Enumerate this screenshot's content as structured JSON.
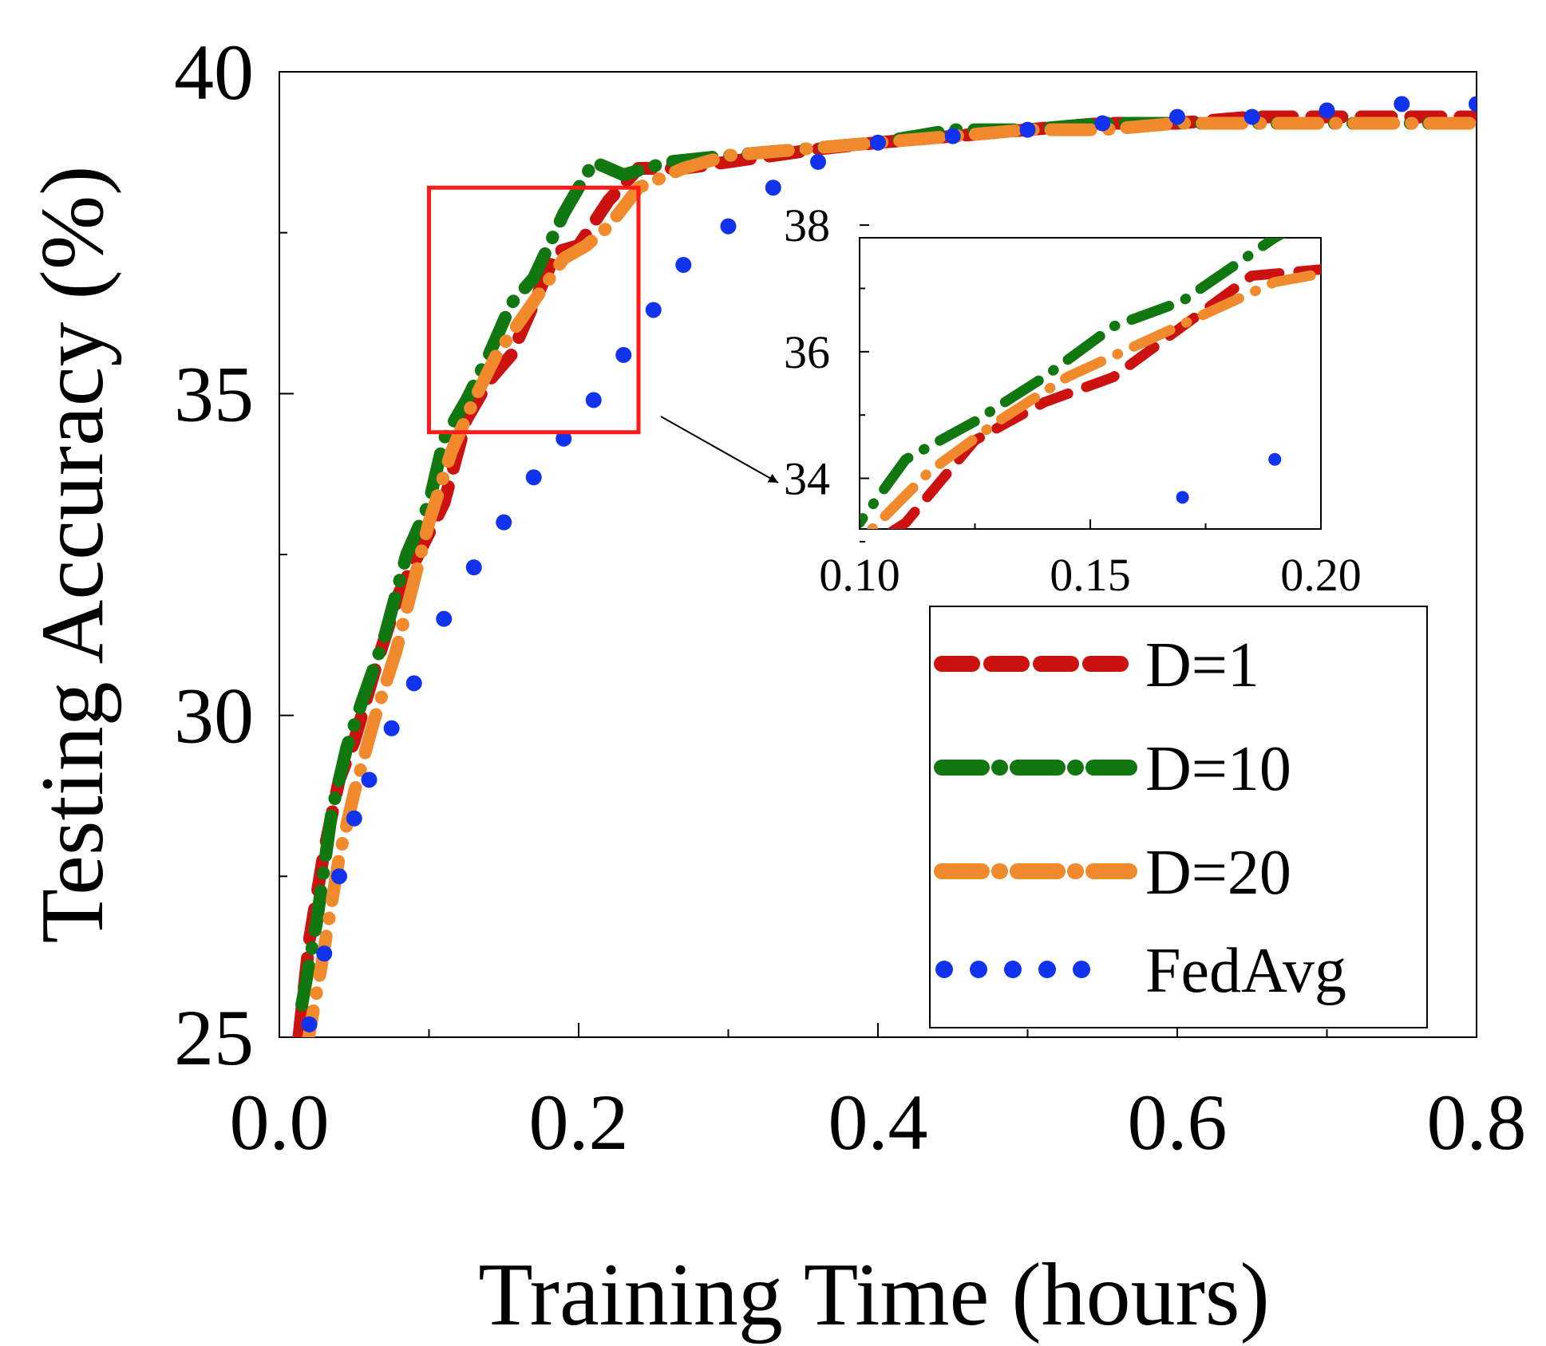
{
  "chart_data": {
    "type": "line",
    "title": "",
    "xlabel": "Training Time (hours)",
    "ylabel": "Testing Accuracy (%)",
    "xlim": [
      0,
      0.8
    ],
    "ylim": [
      25,
      40
    ],
    "xticks": [
      0.0,
      0.2,
      0.4,
      0.6,
      0.8
    ],
    "xtick_labels": [
      "0.0",
      "0.2",
      "0.4",
      "0.6",
      "0.8"
    ],
    "yticks": [
      25,
      30,
      35,
      40
    ],
    "ytick_labels": [
      "25",
      "30",
      "35",
      "40"
    ],
    "grid": false,
    "legend_position": "bottom-right",
    "series": [
      {
        "name": "D=1",
        "color": "#cc1111",
        "style": "dashed",
        "x": [
          0.013,
          0.02,
          0.03,
          0.04,
          0.05,
          0.065,
          0.08,
          0.095,
          0.11,
          0.125,
          0.14,
          0.155,
          0.17,
          0.185,
          0.2,
          0.22,
          0.24,
          0.27,
          0.3,
          0.33,
          0.36,
          0.4,
          0.45,
          0.5,
          0.55,
          0.6,
          0.65,
          0.7,
          0.75,
          0.8
        ],
        "y": [
          25.0,
          26.5,
          27.9,
          29.0,
          29.6,
          30.8,
          31.9,
          32.6,
          33.3,
          34.6,
          35.2,
          35.6,
          36.4,
          37.2,
          37.3,
          38.0,
          38.5,
          38.5,
          38.6,
          38.7,
          38.8,
          38.9,
          39.0,
          39.1,
          39.2,
          39.2,
          39.3,
          39.3,
          39.3,
          39.3
        ]
      },
      {
        "name": "D=10",
        "color": "#117711",
        "style": "dash-dot",
        "x": [
          0.015,
          0.025,
          0.035,
          0.045,
          0.055,
          0.07,
          0.085,
          0.1,
          0.11,
          0.125,
          0.14,
          0.155,
          0.17,
          0.19,
          0.21,
          0.23,
          0.26,
          0.3,
          0.35,
          0.4,
          0.45,
          0.5,
          0.55,
          0.6,
          0.65,
          0.7,
          0.75,
          0.8
        ],
        "y": [
          25.5,
          26.8,
          28.5,
          29.5,
          30.2,
          31.2,
          32.5,
          33.3,
          34.3,
          34.9,
          35.6,
          36.4,
          36.8,
          37.8,
          38.6,
          38.4,
          38.6,
          38.7,
          38.8,
          38.9,
          39.1,
          39.1,
          39.2,
          39.2,
          39.2,
          39.2,
          39.2,
          39.2
        ]
      },
      {
        "name": "D=20",
        "color": "#f08a2c",
        "style": "dash-dot",
        "x": [
          0.018,
          0.028,
          0.04,
          0.05,
          0.063,
          0.078,
          0.09,
          0.1,
          0.115,
          0.13,
          0.145,
          0.16,
          0.175,
          0.19,
          0.205,
          0.22,
          0.24,
          0.27,
          0.3,
          0.35,
          0.4,
          0.45,
          0.5,
          0.55,
          0.6,
          0.65,
          0.7,
          0.75,
          0.8
        ],
        "y": [
          24.8,
          26.1,
          27.8,
          28.8,
          29.9,
          31.0,
          32.1,
          33.0,
          34.1,
          34.9,
          35.6,
          36.1,
          36.6,
          37.1,
          37.3,
          37.6,
          38.2,
          38.5,
          38.7,
          38.8,
          38.9,
          39.0,
          39.1,
          39.1,
          39.2,
          39.2,
          39.2,
          39.2,
          39.2
        ]
      },
      {
        "name": "FedAvg",
        "color": "#1133ee",
        "style": "dotted",
        "x": [
          0.02,
          0.03,
          0.04,
          0.05,
          0.06,
          0.075,
          0.09,
          0.11,
          0.13,
          0.15,
          0.17,
          0.19,
          0.21,
          0.23,
          0.25,
          0.27,
          0.3,
          0.33,
          0.36,
          0.4,
          0.45,
          0.5,
          0.55,
          0.6,
          0.65,
          0.7,
          0.75,
          0.8
        ],
        "y": [
          25.2,
          26.3,
          27.5,
          28.4,
          29.0,
          29.8,
          30.5,
          31.5,
          32.3,
          33.0,
          33.7,
          34.3,
          34.9,
          35.6,
          36.3,
          37.0,
          37.6,
          38.2,
          38.6,
          38.9,
          39.0,
          39.1,
          39.2,
          39.3,
          39.3,
          39.4,
          39.5,
          39.5
        ]
      }
    ],
    "zoom_region": {
      "xlim": [
        0.1,
        0.24
      ],
      "ylim": [
        34.4,
        38.2
      ]
    },
    "inset": {
      "xlim": [
        0.1,
        0.2
      ],
      "ylim": [
        33.2,
        37.8
      ],
      "xticks": [
        0.1,
        0.15,
        0.2
      ],
      "xtick_labels": [
        "0.10",
        "0.15",
        "0.20"
      ],
      "yticks": [
        34,
        36,
        38
      ],
      "ytick_labels": [
        "34",
        "36",
        "38"
      ]
    }
  }
}
